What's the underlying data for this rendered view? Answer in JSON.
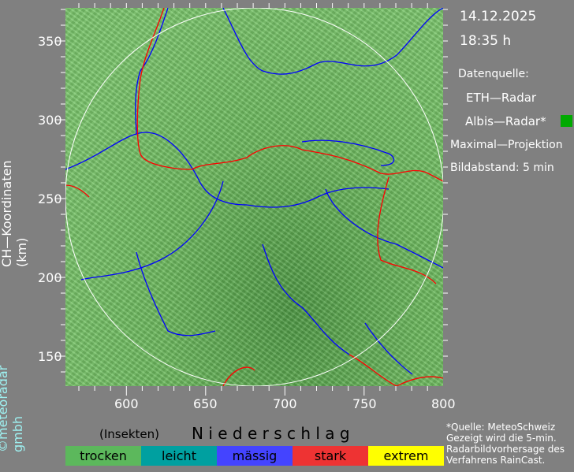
{
  "info": {
    "date": "14.12.2025",
    "time": "18:35 h",
    "source_label": "Datenquelle:",
    "radar1": "ETH—Radar",
    "radar2": "Albis—Radar*",
    "radar2_color": "#00aa00",
    "projection": "Maximal—Projektion",
    "interval": "Bildabstand: 5 min"
  },
  "axes": {
    "ylabel": "CH—Koordinaten (km)",
    "x_ticks": [
      "600",
      "650",
      "700",
      "750",
      "800"
    ],
    "y_ticks": [
      "350",
      "300",
      "250",
      "200",
      "150"
    ]
  },
  "legend": {
    "title": "N i e d e r s c h l a g",
    "insects": "(Insekten)",
    "items": [
      {
        "label": "trocken",
        "color": "#5cb85c"
      },
      {
        "label": "leicht",
        "color": "#00a0a0"
      },
      {
        "label": "mässig",
        "color": "#4444ff"
      },
      {
        "label": "stark",
        "color": "#ee3333"
      },
      {
        "label": "extrem",
        "color": "#ffff00"
      }
    ]
  },
  "note": [
    "*Quelle: MeteoSchweiz",
    "Gezeigt wird die 5-min.",
    "Radarbildvorhersage des",
    "Verfahrens RainCast."
  ],
  "copyright": "©meteoradar gmbh"
}
